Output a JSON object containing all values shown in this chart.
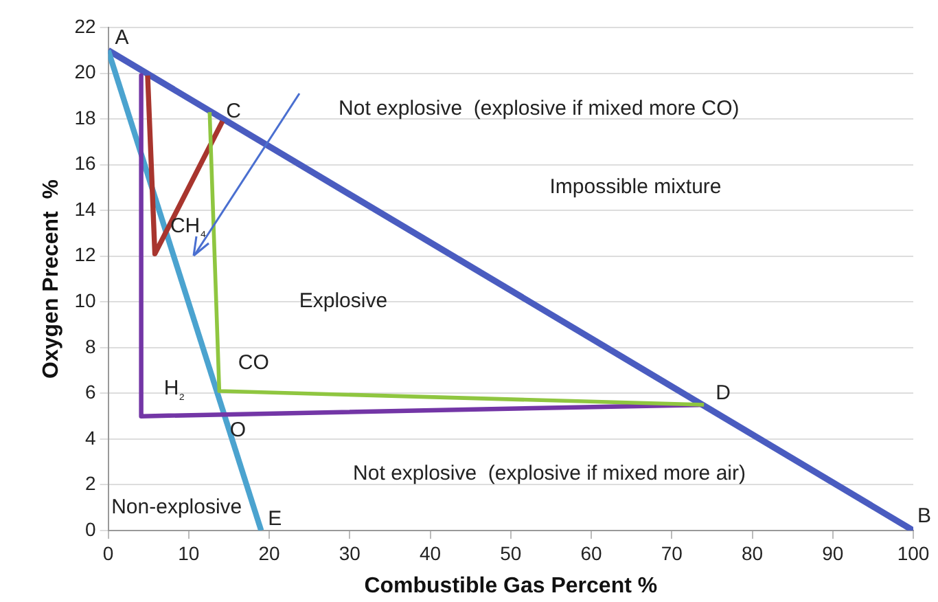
{
  "chart_data": {
    "type": "line",
    "xlabel": "Combustible Gas Percent %",
    "ylabel": "Oxygen Precent  %",
    "xlim": [
      0,
      100
    ],
    "ylim": [
      0,
      22
    ],
    "xticks": [
      0,
      10,
      20,
      30,
      40,
      50,
      60,
      70,
      80,
      90,
      100
    ],
    "yticks": [
      0,
      2,
      4,
      6,
      8,
      10,
      12,
      14,
      16,
      18,
      20,
      22
    ],
    "grid": "y",
    "legend": false,
    "series": [
      {
        "color": "#4a5cc0",
        "x": [
          0,
          100
        ],
        "values": [
          21,
          0
        ]
      },
      {
        "color": "#4ba3cf",
        "x": [
          0,
          19
        ],
        "values": [
          21,
          0
        ]
      },
      {
        "name": "CH₄",
        "color": "#a8352e",
        "x": [
          4.9,
          5.8,
          14.2
        ],
        "values": [
          19.9,
          12.1,
          17.9
        ]
      },
      {
        "name": "H₂",
        "color": "#7336a6",
        "x": [
          4.1,
          4.1,
          74
        ],
        "values": [
          19.9,
          5.0,
          5.5
        ]
      },
      {
        "name": "CO",
        "color": "#8fc640",
        "x": [
          12.6,
          13.8,
          74
        ],
        "values": [
          18.3,
          6.1,
          5.5
        ]
      }
    ],
    "annotations": [
      {
        "text": "A",
        "x": 0,
        "y": 21
      },
      {
        "text": "C",
        "x": 14.2,
        "y": 17.9
      },
      {
        "text": "D",
        "x": 74,
        "y": 5.5
      },
      {
        "text": "O",
        "x": 14.4,
        "y": 5.1
      },
      {
        "text": "E",
        "x": 19,
        "y": 0
      },
      {
        "text": "B",
        "x": 100,
        "y": 0
      },
      "Not explosive  (explosive if mixed more CO)",
      "Impossible mixture",
      "Explosive",
      "Not explosive  (explosive if mixed more air)",
      "Non-explosive"
    ]
  }
}
